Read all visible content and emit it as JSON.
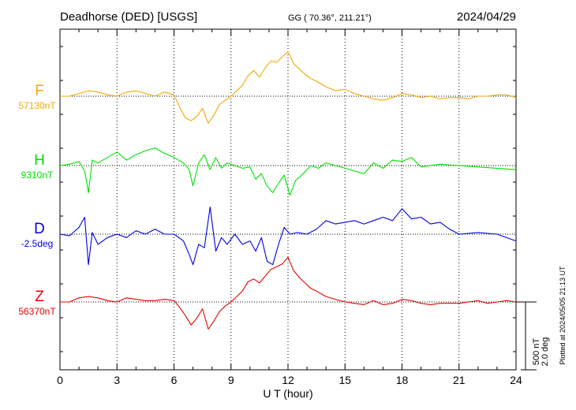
{
  "header": {
    "station": "Deadhorse (DED)  [USGS]",
    "coords": "GG ( 70.36°, 211.21°)",
    "date": "2024/04/29"
  },
  "side_note": "Plotted at 2024/05/05 21:13 UT",
  "scale": {
    "nt": "500 nT",
    "deg": "2.0 deg"
  },
  "chart_data": {
    "type": "line",
    "title": "Deadhorse (DED)  [USGS]",
    "xlabel": "U T (hour)",
    "ylabel": "",
    "xlim": [
      0,
      24
    ],
    "x_ticks": [
      0,
      3,
      6,
      9,
      12,
      15,
      18,
      21,
      24
    ],
    "x_tick_labels": [
      "0",
      "3",
      "6",
      "9",
      "12",
      "15",
      "18",
      "21",
      "24"
    ],
    "grid": true,
    "series_scale": "500 nT / 2.0 deg per scale bar",
    "series": [
      {
        "name": "F",
        "baseline_label": "57130nT",
        "unit": "nT",
        "color": "#F2A900",
        "x": [
          0,
          0.5,
          1,
          1.5,
          2,
          2.5,
          3,
          3.5,
          4,
          4.5,
          5,
          5.5,
          6,
          6.3,
          6.6,
          6.9,
          7.2,
          7.5,
          7.8,
          8.1,
          8.4,
          8.7,
          9,
          9.3,
          9.6,
          9.9,
          10.2,
          10.5,
          10.8,
          11.1,
          11.4,
          11.7,
          12,
          12.3,
          12.6,
          12.9,
          13.2,
          13.5,
          14,
          14.5,
          15,
          15.5,
          16,
          16.5,
          17,
          17.5,
          18,
          18.5,
          19,
          19.5,
          20,
          20.5,
          21,
          21.5,
          22,
          22.5,
          23,
          23.5,
          24
        ],
        "values": [
          0,
          0,
          20,
          40,
          30,
          10,
          0,
          30,
          40,
          20,
          0,
          30,
          10,
          -80,
          -160,
          -180,
          -150,
          -90,
          -200,
          -140,
          -60,
          -30,
          0,
          40,
          80,
          150,
          190,
          140,
          210,
          260,
          250,
          290,
          330,
          240,
          200,
          160,
          130,
          110,
          70,
          40,
          50,
          20,
          0,
          -20,
          -30,
          -10,
          20,
          10,
          -10,
          0,
          -20,
          -10,
          -10,
          -20,
          0,
          0,
          10,
          10,
          -10
        ]
      },
      {
        "name": "H",
        "baseline_label": "9310nT",
        "unit": "nT",
        "color": "#00E000",
        "x": [
          0,
          0.5,
          1,
          1.3,
          1.5,
          1.7,
          2,
          2.5,
          3,
          3.5,
          4,
          4.5,
          5,
          5.5,
          6,
          6.5,
          6.8,
          7,
          7.3,
          7.6,
          7.9,
          8.2,
          8.5,
          8.8,
          9.2,
          9.6,
          10,
          10.3,
          10.6,
          10.9,
          11.2,
          11.5,
          11.8,
          12.1,
          12.4,
          12.8,
          13.2,
          13.6,
          14,
          14.5,
          15,
          15.5,
          16,
          16.5,
          17,
          17.5,
          18,
          18.5,
          19,
          19.5,
          20,
          21,
          22,
          23,
          24
        ],
        "values": [
          0,
          10,
          30,
          -40,
          -200,
          40,
          20,
          60,
          100,
          40,
          80,
          110,
          130,
          90,
          60,
          20,
          -30,
          -150,
          20,
          80,
          -30,
          60,
          -20,
          20,
          0,
          -20,
          -10,
          -100,
          -60,
          -150,
          -200,
          -130,
          -70,
          -220,
          -110,
          -60,
          0,
          -20,
          20,
          0,
          -20,
          -40,
          -60,
          20,
          -20,
          40,
          30,
          60,
          -10,
          0,
          10,
          0,
          -10,
          -20,
          -30
        ]
      },
      {
        "name": "D",
        "baseline_label": "-2.5deg",
        "unit": "deg",
        "color": "#0000E6",
        "x": [
          0,
          0.5,
          1,
          1.3,
          1.5,
          1.7,
          2,
          2.5,
          3,
          3.5,
          4,
          4.5,
          5,
          5.5,
          6,
          6.5,
          6.8,
          7,
          7.3,
          7.6,
          7.9,
          8.2,
          8.5,
          8.8,
          9.2,
          9.6,
          10,
          10.3,
          10.6,
          10.9,
          11.2,
          11.5,
          11.8,
          12.1,
          12.5,
          13,
          13.5,
          14,
          14.5,
          15,
          15.5,
          16,
          16.5,
          17,
          17.5,
          18,
          18.5,
          19,
          19.5,
          20,
          20.5,
          21,
          22,
          23,
          24
        ],
        "values": [
          0,
          -0.05,
          0.2,
          0.5,
          -0.9,
          0.05,
          -0.3,
          -0.1,
          0,
          -0.1,
          0.1,
          0,
          0.15,
          0,
          0,
          -0.2,
          -0.6,
          -0.9,
          -0.3,
          -0.4,
          0.8,
          -0.5,
          -0.1,
          -0.3,
          0,
          -0.3,
          -0.2,
          -0.5,
          -0.1,
          -0.8,
          -0.9,
          -0.3,
          0.2,
          0,
          0.05,
          0,
          0.15,
          0.4,
          0.3,
          0.35,
          0.4,
          0.3,
          0.4,
          0.5,
          0.4,
          0.75,
          0.45,
          0.5,
          0.3,
          0.35,
          0.15,
          0,
          0.05,
          0,
          -0.2
        ]
      },
      {
        "name": "Z",
        "baseline_label": "56370nT",
        "unit": "nT",
        "color": "#E60000",
        "x": [
          0,
          0.5,
          1,
          1.5,
          2,
          2.5,
          3,
          3.5,
          4,
          4.5,
          5,
          5.5,
          6,
          6.3,
          6.6,
          6.9,
          7.2,
          7.5,
          7.8,
          8.1,
          8.4,
          8.7,
          9,
          9.3,
          9.6,
          9.9,
          10.2,
          10.5,
          10.8,
          11.1,
          11.4,
          11.7,
          12,
          12.3,
          12.6,
          12.9,
          13.2,
          13.5,
          14,
          14.5,
          15,
          15.5,
          16,
          16.5,
          17,
          17.5,
          18,
          18.5,
          19,
          19.5,
          20,
          20.5,
          21,
          21.5,
          22,
          22.5,
          23,
          23.5,
          24
        ],
        "values": [
          0,
          0,
          30,
          40,
          30,
          10,
          0,
          30,
          20,
          10,
          10,
          20,
          10,
          -40,
          -100,
          -170,
          -120,
          -50,
          -200,
          -140,
          -70,
          -30,
          0,
          40,
          80,
          150,
          170,
          140,
          190,
          240,
          260,
          280,
          330,
          230,
          180,
          140,
          100,
          80,
          40,
          20,
          0,
          -10,
          -20,
          10,
          -20,
          -10,
          20,
          10,
          -10,
          -20,
          -10,
          -10,
          -10,
          0,
          10,
          -10,
          0,
          10,
          0
        ]
      }
    ]
  }
}
